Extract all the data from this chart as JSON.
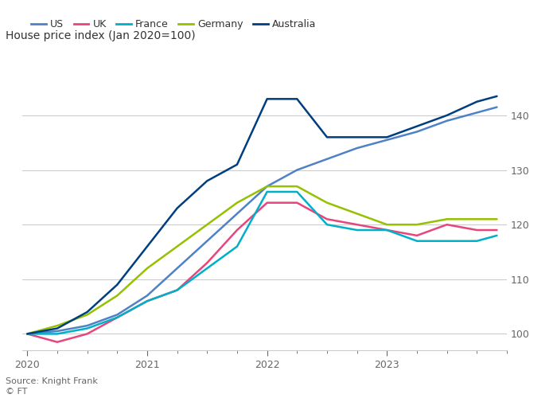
{
  "title": "House price index (Jan 2020=100)",
  "source": "Source: Knight Frank",
  "copyright": "© FT",
  "background_color": "#ffffff",
  "text_color": "#333333",
  "label_color": "#666666",
  "grid_color": "#cccccc",
  "ylim": [
    97,
    148
  ],
  "yticks": [
    100,
    110,
    120,
    130,
    140
  ],
  "series": {
    "US": {
      "color": "#4f81c7",
      "data_x": [
        0,
        3,
        6,
        9,
        12,
        15,
        18,
        21,
        24,
        27,
        30,
        33,
        36,
        39,
        42,
        45,
        47
      ],
      "data_y": [
        100,
        100.5,
        101.5,
        103.5,
        107,
        112,
        117,
        122,
        127,
        130,
        132,
        134,
        135.5,
        137,
        139,
        140.5,
        141.5
      ]
    },
    "UK": {
      "color": "#e8457c",
      "data_x": [
        0,
        3,
        6,
        9,
        12,
        15,
        18,
        21,
        24,
        27,
        30,
        33,
        36,
        39,
        42,
        45,
        47
      ],
      "data_y": [
        100,
        98.5,
        100,
        103,
        106,
        108,
        113,
        119,
        124,
        124,
        121,
        120,
        119,
        118,
        120,
        119,
        119
      ]
    },
    "France": {
      "color": "#00b0c8",
      "data_x": [
        0,
        3,
        6,
        9,
        12,
        15,
        18,
        21,
        24,
        27,
        30,
        33,
        36,
        39,
        42,
        45,
        47
      ],
      "data_y": [
        100,
        100,
        101,
        103,
        106,
        108,
        112,
        116,
        126,
        126,
        120,
        119,
        119,
        117,
        117,
        117,
        118
      ]
    },
    "Germany": {
      "color": "#96c000",
      "data_x": [
        0,
        3,
        6,
        9,
        12,
        15,
        18,
        21,
        24,
        27,
        30,
        33,
        36,
        39,
        42,
        45,
        47
      ],
      "data_y": [
        100,
        101.5,
        103.5,
        107,
        112,
        116,
        120,
        124,
        127,
        127,
        124,
        122,
        120,
        120,
        121,
        121,
        121
      ]
    },
    "Australia": {
      "color": "#003f7f",
      "data_x": [
        0,
        3,
        6,
        9,
        12,
        15,
        18,
        21,
        24,
        27,
        30,
        33,
        36,
        39,
        42,
        45,
        47
      ],
      "data_y": [
        100,
        101,
        104,
        109,
        116,
        123,
        128,
        131,
        143,
        143,
        136,
        136,
        136,
        138,
        140,
        142.5,
        143.5
      ]
    }
  },
  "legend_order": [
    "US",
    "UK",
    "France",
    "Germany",
    "Australia"
  ],
  "x_tick_labels": [
    "2020",
    "2021",
    "2022",
    "2023"
  ],
  "x_tick_positions": [
    0,
    12,
    24,
    36
  ]
}
